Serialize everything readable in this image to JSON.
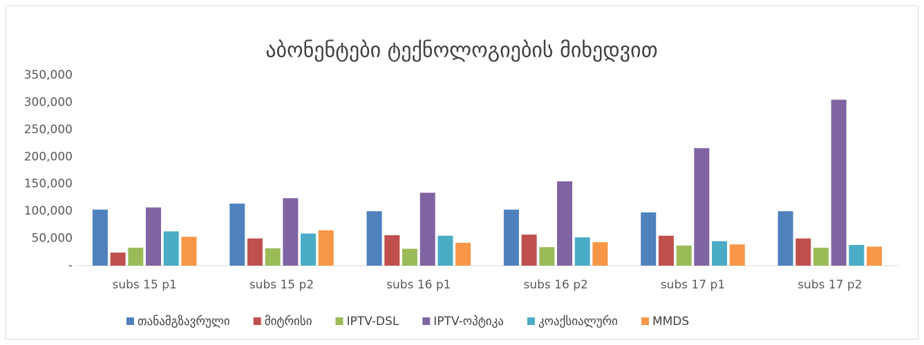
{
  "chart_data": {
    "type": "bar",
    "title": "აბონენტები ტექნოლოგიების მიხედვით",
    "categories": [
      "subs  15 p1",
      "subs  15 p2",
      "subs  16 p1",
      "subs  16 p2",
      "subs  17 p1",
      "subs  17 p2"
    ],
    "series": [
      {
        "name": "თანამგზავრული",
        "color": "#4f81bd",
        "values": [
          103000,
          114000,
          100000,
          103000,
          98000,
          100000
        ]
      },
      {
        "name": "მიტრისი",
        "color": "#c0504d",
        "values": [
          24000,
          50000,
          56000,
          57000,
          55000,
          50000
        ]
      },
      {
        "name": "IPTV-DSL",
        "color": "#9bbb59",
        "values": [
          33000,
          32000,
          31000,
          34000,
          37000,
          33000
        ]
      },
      {
        "name": "IPTV-ოპტიკა",
        "color": "#8064a2",
        "values": [
          107000,
          124000,
          134000,
          155000,
          216000,
          305000
        ]
      },
      {
        "name": "კოაქსიალური",
        "color": "#4bacc6",
        "values": [
          63000,
          59000,
          55000,
          52000,
          45000,
          38000
        ]
      },
      {
        "name": "MMDS",
        "color": "#f79646",
        "values": [
          53000,
          65000,
          42000,
          43000,
          39000,
          35000
        ]
      }
    ],
    "ylim": [
      0,
      350000
    ],
    "yticks": [
      {
        "value": 0,
        "label": "-"
      },
      {
        "value": 50000,
        "label": "50,000"
      },
      {
        "value": 100000,
        "label": "100,000"
      },
      {
        "value": 150000,
        "label": "150,000"
      },
      {
        "value": 200000,
        "label": "200,000"
      },
      {
        "value": 250000,
        "label": "250,000"
      },
      {
        "value": 300000,
        "label": "300,000"
      },
      {
        "value": 350000,
        "label": "350,000"
      }
    ],
    "grid": false,
    "legend": "bottom"
  }
}
